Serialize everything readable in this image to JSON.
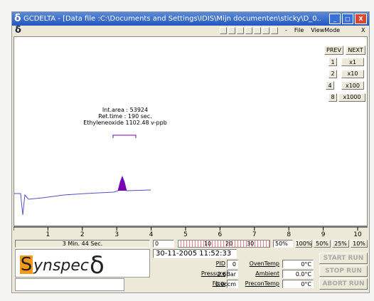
{
  "app_icon": "δ",
  "title_bar": {
    "title": "GCDELTA - [Data file :C:\\Documents and Settings\\IDIS\\Mijn documenten\\sticky\\D_0...",
    "minimize": "_",
    "maximize": "□",
    "close": "X"
  },
  "menu": {
    "items": [
      "-",
      "File",
      "ViewMode"
    ],
    "close": "X"
  },
  "nav": {
    "prev": "PREV",
    "next": "NEXT"
  },
  "scale_buttons": [
    {
      "key": "1",
      "label": "x1"
    },
    {
      "key": "2",
      "label": "x10"
    },
    {
      "key": "4",
      "label": "x100"
    },
    {
      "key": "8",
      "label": "x1000"
    }
  ],
  "peak_info": [
    "Int.area : 53924",
    "Ret.time : 190 sec.",
    "Ethyleneoxide 1102.48 v-ppb"
  ],
  "axis_labels": [
    "1",
    "2",
    "3",
    "4",
    "5",
    "6",
    "7",
    "8",
    "9",
    "10"
  ],
  "bottom": {
    "elapsed": "3 Min. 44 Sec.",
    "offset": "0",
    "bar_labels": [
      "10",
      "20",
      "30"
    ],
    "zoom": "50%",
    "zoom_buttons": [
      "100%",
      "50%",
      "25%",
      "10%"
    ],
    "logo": {
      "initial": "S",
      "rest": "ynspec",
      "symbol": "δ"
    },
    "datetime": "30-11-2005   11:52:33",
    "readings": [
      {
        "label": "PID",
        "value": "0"
      },
      {
        "label": "OvenTemp",
        "value": "0°C"
      },
      {
        "label": "Pressure",
        "value": "2.6Bar"
      },
      {
        "label": "Ambient",
        "value": "0.0°C"
      },
      {
        "label": "Flow",
        "value": "0.0ccm"
      },
      {
        "label": "PreconTemp",
        "value": "0°C"
      }
    ],
    "buttons": [
      "START RUN",
      "STOP RUN",
      "ABORT RUN"
    ]
  }
}
